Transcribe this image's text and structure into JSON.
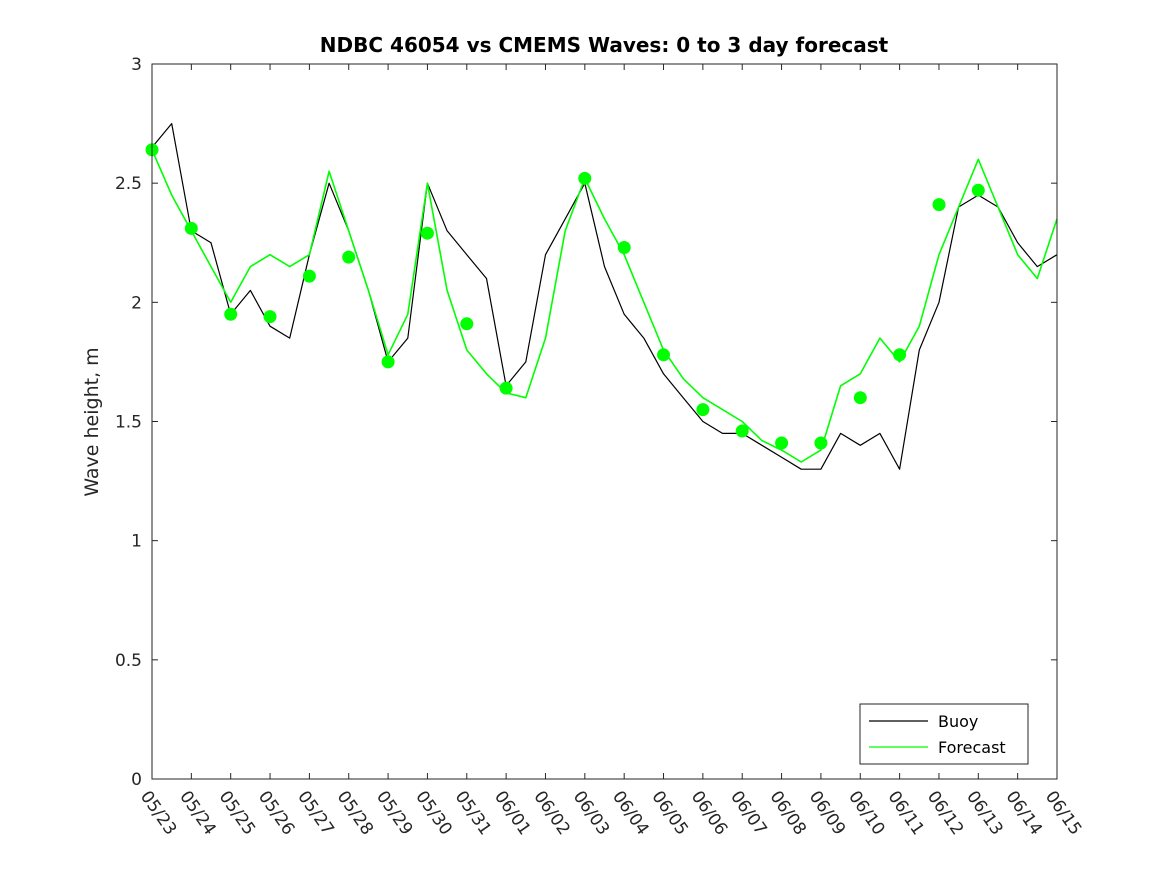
{
  "chart_data": {
    "type": "line",
    "title": "NDBC 46054 vs CMEMS Waves: 0 to 3 day forecast",
    "xlabel": "",
    "ylabel": "Wave height, m",
    "xlim": [
      "05/23",
      "06/15"
    ],
    "ylim": [
      0,
      3
    ],
    "x_ticks": [
      "05/23",
      "05/24",
      "05/25",
      "05/26",
      "05/27",
      "05/28",
      "05/29",
      "05/30",
      "05/31",
      "06/01",
      "06/02",
      "06/03",
      "06/04",
      "06/05",
      "06/06",
      "06/07",
      "06/08",
      "06/09",
      "06/10",
      "06/11",
      "06/12",
      "06/13",
      "06/14",
      "06/15"
    ],
    "y_ticks": [
      "0",
      "0.5",
      "1",
      "1.5",
      "2",
      "2.5",
      "3"
    ],
    "grid": false,
    "legend_position": "bottom-right",
    "colors": {
      "buoy": "#000000",
      "forecast": "#00ff00",
      "axes": "#262626"
    },
    "series": [
      {
        "name": "Buoy",
        "color": "#000000",
        "x": [
          "05/23",
          "05/23 12h",
          "05/24",
          "05/24 12h",
          "05/25",
          "05/25 12h",
          "05/26",
          "05/26 12h",
          "05/27",
          "05/27 12h",
          "05/28",
          "05/28 12h",
          "05/29",
          "05/29 12h",
          "05/30",
          "05/30 12h",
          "05/31",
          "05/31 12h",
          "06/01",
          "06/01 12h",
          "06/02",
          "06/02 12h",
          "06/03",
          "06/03 12h",
          "06/04",
          "06/04 12h",
          "06/05",
          "06/05 12h",
          "06/06",
          "06/06 12h",
          "06/07",
          "06/07 12h",
          "06/08",
          "06/08 12h",
          "06/09",
          "06/09 12h",
          "06/10",
          "06/10 12h",
          "06/11",
          "06/11 12h",
          "06/12",
          "06/12 12h",
          "06/13",
          "06/13 12h",
          "06/14",
          "06/14 12h",
          "06/15"
        ],
        "values": [
          2.65,
          2.75,
          2.3,
          2.25,
          1.95,
          2.05,
          1.9,
          1.85,
          2.2,
          2.5,
          2.3,
          2.05,
          1.75,
          1.85,
          2.5,
          2.3,
          2.2,
          2.1,
          1.65,
          1.75,
          2.2,
          2.35,
          2.5,
          2.15,
          1.95,
          1.85,
          1.7,
          1.6,
          1.5,
          1.45,
          1.45,
          1.4,
          1.35,
          1.3,
          1.3,
          1.45,
          1.4,
          1.45,
          1.3,
          1.8,
          2.0,
          2.4,
          2.45,
          2.4,
          2.25,
          2.15,
          2.2
        ]
      },
      {
        "name": "Forecast",
        "color": "#00ff00",
        "x": [
          "05/23",
          "05/23 12h",
          "05/24",
          "05/24 12h",
          "05/25",
          "05/25 12h",
          "05/26",
          "05/26 12h",
          "05/27",
          "05/27 12h",
          "05/28",
          "05/28 12h",
          "05/29",
          "05/29 12h",
          "05/30",
          "05/30 12h",
          "05/31",
          "05/31 12h",
          "06/01",
          "06/01 12h",
          "06/02",
          "06/02 12h",
          "06/03",
          "06/03 12h",
          "06/04",
          "06/04 12h",
          "06/05",
          "06/05 12h",
          "06/06",
          "06/06 12h",
          "06/07",
          "06/07 12h",
          "06/08",
          "06/08 12h",
          "06/09",
          "06/09 12h",
          "06/10",
          "06/10 12h",
          "06/11",
          "06/11 12h",
          "06/12",
          "06/12 12h",
          "06/13",
          "06/13 12h",
          "06/14",
          "06/14 12h",
          "06/15"
        ],
        "values": [
          2.64,
          2.45,
          2.3,
          2.15,
          2.0,
          2.15,
          2.2,
          2.15,
          2.2,
          2.55,
          2.3,
          2.05,
          1.78,
          1.95,
          2.5,
          2.05,
          1.8,
          1.7,
          1.62,
          1.6,
          1.85,
          2.3,
          2.52,
          2.35,
          2.2,
          2.0,
          1.8,
          1.68,
          1.6,
          1.55,
          1.5,
          1.42,
          1.38,
          1.33,
          1.38,
          1.65,
          1.7,
          1.85,
          1.75,
          1.9,
          2.2,
          2.4,
          2.6,
          2.4,
          2.2,
          2.1,
          2.35
        ]
      }
    ],
    "markers": {
      "series": "Forecast",
      "x": [
        "05/23",
        "05/24",
        "05/25",
        "05/26",
        "05/27",
        "05/28",
        "05/29",
        "05/30",
        "05/31",
        "06/01",
        "06/03",
        "06/04",
        "06/05",
        "06/06",
        "06/07",
        "06/08",
        "06/09",
        "06/10",
        "06/11",
        "06/12",
        "06/13"
      ],
      "values": [
        2.64,
        2.31,
        1.95,
        1.94,
        2.11,
        2.19,
        1.75,
        2.29,
        1.91,
        1.64,
        2.52,
        2.23,
        1.78,
        1.55,
        1.46,
        1.41,
        1.41,
        1.6,
        1.78,
        2.41,
        2.47
      ]
    },
    "legend": [
      {
        "label": "Buoy",
        "color": "#000000"
      },
      {
        "label": "Forecast",
        "color": "#00ff00"
      }
    ]
  }
}
